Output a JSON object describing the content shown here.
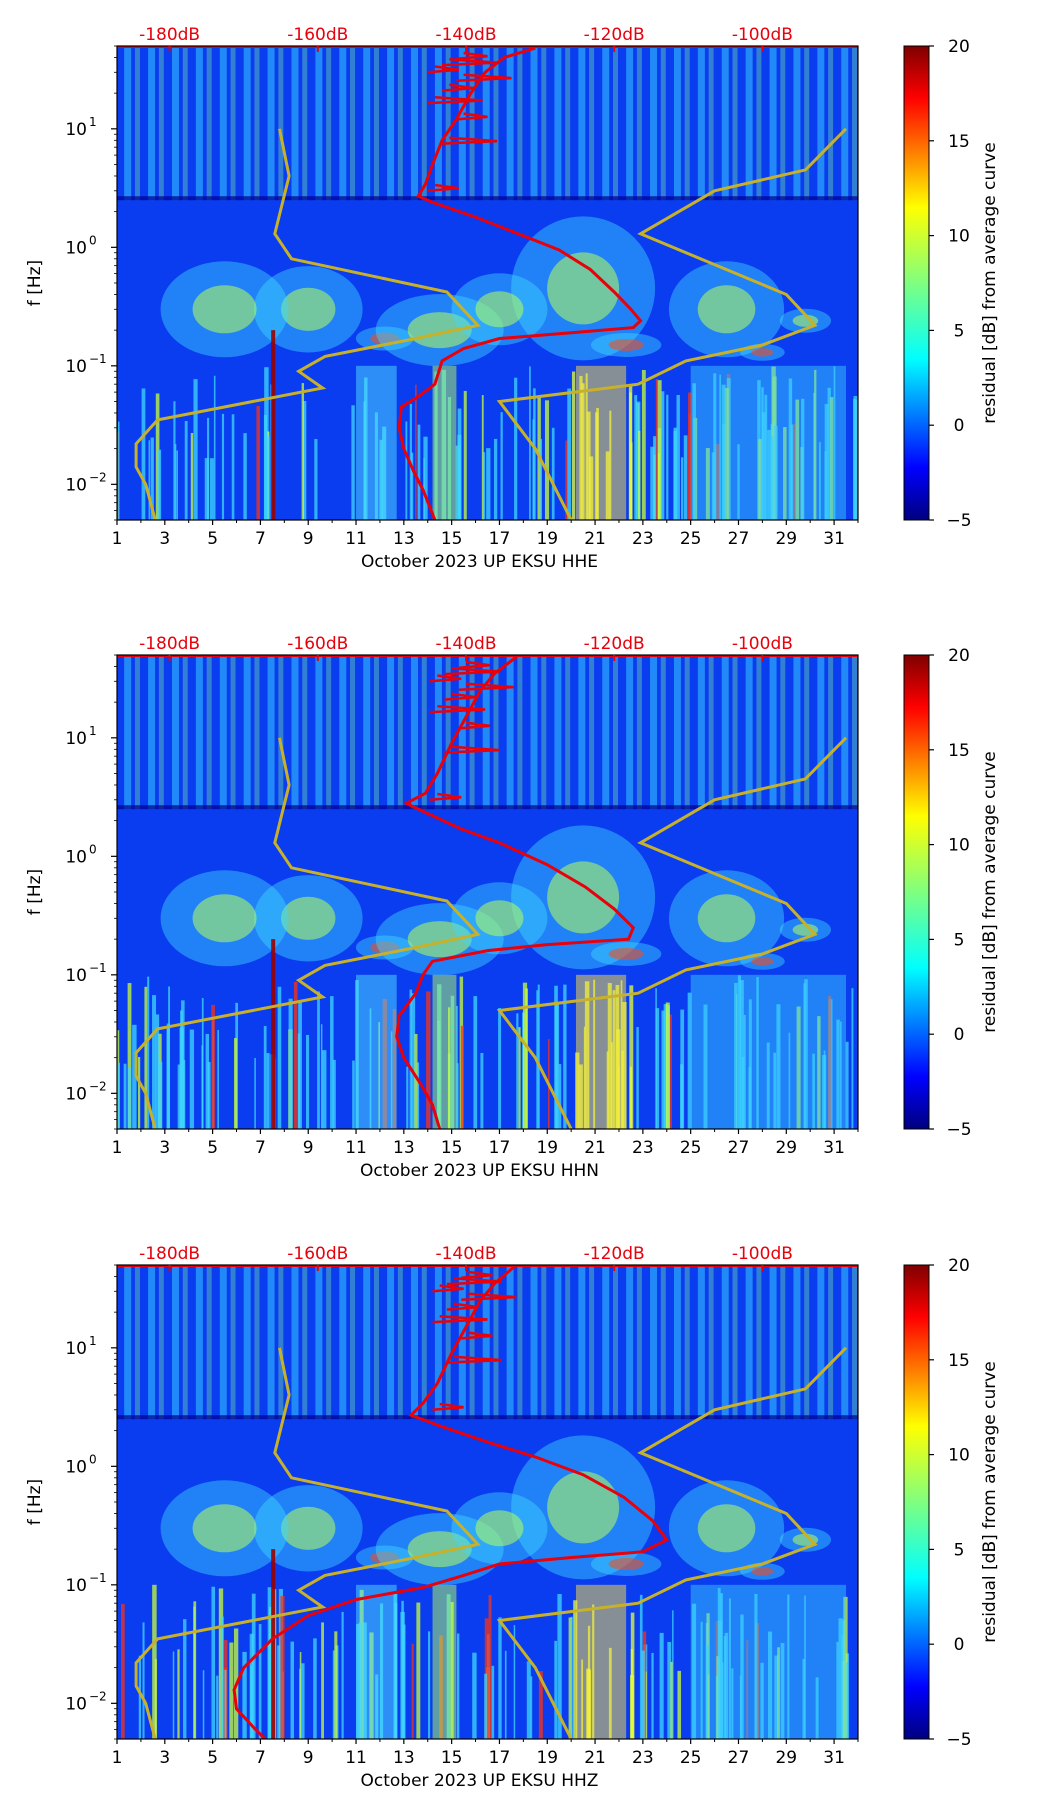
{
  "chart_data": [
    {
      "type": "heatmap",
      "title": "",
      "xlabel": "October 2023 UP EKSU  HHE",
      "ylabel": "f [Hz]",
      "x_ticks": [
        "1",
        "3",
        "5",
        "7",
        "9",
        "11",
        "13",
        "15",
        "17",
        "19",
        "21",
        "23",
        "25",
        "27",
        "29",
        "31"
      ],
      "x_range": [
        1,
        32
      ],
      "y_range_hz": [
        0.005,
        50
      ],
      "y_ticks": [
        {
          "label": "10",
          "exp": "1",
          "value": 10
        },
        {
          "label": "10",
          "exp": "0",
          "value": 1
        },
        {
          "label": "10",
          "exp": "−1",
          "value": 0.1
        },
        {
          "label": "10",
          "exp": "−2",
          "value": 0.01
        }
      ],
      "top_axis_labels": [
        "-180dB",
        "-160dB",
        "-140dB",
        "-120dB",
        "-100dB"
      ],
      "colorbar": {
        "label": "residual [dB] from average curve",
        "ticks": [
          "20",
          "15",
          "10",
          "5",
          "0",
          "−5"
        ],
        "range": [
          -5,
          20
        ]
      },
      "red_curve": {
        "name": "average PSD curve",
        "points": [
          [
            18.5,
            48
          ],
          [
            17.2,
            40
          ],
          [
            16.4,
            30
          ],
          [
            15.8,
            20
          ],
          [
            15.2,
            12
          ],
          [
            14.6,
            8
          ],
          [
            14.2,
            5
          ],
          [
            13.9,
            3.4
          ],
          [
            13.6,
            2.7
          ],
          [
            14.2,
            2.4
          ],
          [
            16.0,
            1.8
          ],
          [
            18.0,
            1.25
          ],
          [
            19.5,
            0.95
          ],
          [
            20.8,
            0.65
          ],
          [
            21.8,
            0.42
          ],
          [
            22.5,
            0.3
          ],
          [
            22.9,
            0.24
          ],
          [
            22.6,
            0.21
          ],
          [
            20.0,
            0.19
          ],
          [
            17.0,
            0.17
          ],
          [
            15.5,
            0.14
          ],
          [
            14.6,
            0.11
          ],
          [
            14.3,
            0.07
          ],
          [
            13.6,
            0.055
          ],
          [
            12.9,
            0.045
          ],
          [
            12.8,
            0.03
          ],
          [
            13.0,
            0.02
          ],
          [
            13.4,
            0.013
          ],
          [
            13.8,
            0.009
          ],
          [
            14.3,
            0.005
          ]
        ]
      },
      "olive_curve": {
        "name": "noise model bounds",
        "points": [
          [
            7.8,
            10
          ],
          [
            8.2,
            4
          ],
          [
            7.6,
            1.3
          ],
          [
            8.3,
            0.8
          ],
          [
            14.8,
            0.42
          ],
          [
            16.1,
            0.22
          ],
          [
            13.5,
            0.17
          ],
          [
            9.7,
            0.12
          ],
          [
            8.6,
            0.09
          ],
          [
            9.6,
            0.065
          ],
          [
            2.7,
            0.035
          ],
          [
            1.8,
            0.022
          ],
          [
            1.8,
            0.014
          ],
          [
            2.2,
            0.01
          ],
          [
            2.6,
            0.005
          ]
        ]
      },
      "olive_curve_2": {
        "name": "noise model bounds (right)",
        "points": [
          [
            31.5,
            10
          ],
          [
            29.8,
            4.5
          ],
          [
            26.0,
            3.0
          ],
          [
            22.9,
            1.3
          ],
          [
            29.0,
            0.4
          ],
          [
            30.2,
            0.22
          ],
          [
            28.0,
            0.15
          ],
          [
            24.8,
            0.11
          ],
          [
            22.8,
            0.07
          ],
          [
            17.0,
            0.05
          ],
          [
            18.5,
            0.02
          ],
          [
            20.0,
            0.005
          ]
        ]
      }
    },
    {
      "type": "heatmap",
      "title": "",
      "xlabel": "October 2023 UP EKSU  HHN",
      "ylabel": "f [Hz]",
      "x_ticks": [
        "1",
        "3",
        "5",
        "7",
        "9",
        "11",
        "13",
        "15",
        "17",
        "19",
        "21",
        "23",
        "25",
        "27",
        "29",
        "31"
      ],
      "x_range": [
        1,
        32
      ],
      "y_range_hz": [
        0.005,
        50
      ],
      "y_ticks": [
        {
          "label": "10",
          "exp": "1",
          "value": 10
        },
        {
          "label": "10",
          "exp": "0",
          "value": 1
        },
        {
          "label": "10",
          "exp": "−1",
          "value": 0.1
        },
        {
          "label": "10",
          "exp": "−2",
          "value": 0.01
        }
      ],
      "top_axis_labels": [
        "-180dB",
        "-160dB",
        "-140dB",
        "-120dB",
        "-100dB"
      ],
      "colorbar": {
        "label": "residual [dB] from average curve",
        "ticks": [
          "20",
          "15",
          "10",
          "5",
          "0",
          "−5"
        ],
        "range": [
          -5,
          20
        ]
      },
      "red_curve": {
        "name": "average PSD curve",
        "points": [
          [
            17.7,
            48
          ],
          [
            16.8,
            35
          ],
          [
            16.2,
            25
          ],
          [
            15.6,
            15
          ],
          [
            15.0,
            9
          ],
          [
            14.4,
            5
          ],
          [
            13.9,
            3.4
          ],
          [
            13.1,
            2.8
          ],
          [
            14.0,
            2.3
          ],
          [
            15.4,
            1.7
          ],
          [
            17.0,
            1.3
          ],
          [
            19.0,
            0.85
          ],
          [
            20.6,
            0.55
          ],
          [
            21.8,
            0.36
          ],
          [
            22.6,
            0.25
          ],
          [
            22.4,
            0.2
          ],
          [
            19.0,
            0.18
          ],
          [
            16.5,
            0.16
          ],
          [
            14.2,
            0.13
          ],
          [
            13.8,
            0.1
          ],
          [
            13.5,
            0.07
          ],
          [
            12.8,
            0.045
          ],
          [
            12.7,
            0.03
          ],
          [
            13.0,
            0.02
          ],
          [
            13.7,
            0.012
          ],
          [
            14.2,
            0.008
          ],
          [
            14.5,
            0.005
          ]
        ]
      },
      "olive_curve": {
        "name": "noise model bounds",
        "points": [
          [
            7.8,
            10
          ],
          [
            8.2,
            4
          ],
          [
            7.6,
            1.3
          ],
          [
            8.3,
            0.8
          ],
          [
            14.8,
            0.42
          ],
          [
            16.1,
            0.22
          ],
          [
            13.5,
            0.17
          ],
          [
            9.7,
            0.12
          ],
          [
            8.6,
            0.09
          ],
          [
            9.6,
            0.065
          ],
          [
            2.7,
            0.035
          ],
          [
            1.8,
            0.022
          ],
          [
            1.8,
            0.014
          ],
          [
            2.2,
            0.01
          ],
          [
            2.6,
            0.005
          ]
        ]
      },
      "olive_curve_2": {
        "name": "noise model bounds (right)",
        "points": [
          [
            31.5,
            10
          ],
          [
            29.8,
            4.5
          ],
          [
            26.0,
            3.0
          ],
          [
            22.9,
            1.3
          ],
          [
            29.0,
            0.4
          ],
          [
            30.2,
            0.22
          ],
          [
            28.0,
            0.15
          ],
          [
            24.8,
            0.11
          ],
          [
            22.8,
            0.07
          ],
          [
            17.0,
            0.05
          ],
          [
            18.5,
            0.02
          ],
          [
            20.0,
            0.005
          ]
        ]
      }
    },
    {
      "type": "heatmap",
      "title": "",
      "xlabel": "October 2023 UP EKSU  HHZ",
      "ylabel": "f [Hz]",
      "x_ticks": [
        "1",
        "3",
        "5",
        "7",
        "9",
        "11",
        "13",
        "15",
        "17",
        "19",
        "21",
        "23",
        "25",
        "27",
        "29",
        "31"
      ],
      "x_range": [
        1,
        32
      ],
      "y_range_hz": [
        0.005,
        50
      ],
      "y_ticks": [
        {
          "label": "10",
          "exp": "1",
          "value": 10
        },
        {
          "label": "10",
          "exp": "0",
          "value": 1
        },
        {
          "label": "10",
          "exp": "−1",
          "value": 0.1
        },
        {
          "label": "10",
          "exp": "−2",
          "value": 0.01
        }
      ],
      "top_axis_labels": [
        "-180dB",
        "-160dB",
        "-140dB",
        "-120dB",
        "-100dB"
      ],
      "colorbar": {
        "label": "residual [dB] from average curve",
        "ticks": [
          "20",
          "15",
          "10",
          "5",
          "0",
          "−5"
        ],
        "range": [
          -5,
          20
        ]
      },
      "red_curve": {
        "name": "average PSD curve",
        "points": [
          [
            17.6,
            48
          ],
          [
            16.8,
            35
          ],
          [
            16.2,
            25
          ],
          [
            15.6,
            15
          ],
          [
            15.0,
            9
          ],
          [
            14.4,
            5
          ],
          [
            13.8,
            3.4
          ],
          [
            13.3,
            2.7
          ],
          [
            14.5,
            2.2
          ],
          [
            16.5,
            1.6
          ],
          [
            18.5,
            1.2
          ],
          [
            20.5,
            0.85
          ],
          [
            22.2,
            0.55
          ],
          [
            23.4,
            0.35
          ],
          [
            24.0,
            0.24
          ],
          [
            23.0,
            0.19
          ],
          [
            20.0,
            0.17
          ],
          [
            17.0,
            0.15
          ],
          [
            15.5,
            0.12
          ],
          [
            13.8,
            0.095
          ],
          [
            11.0,
            0.075
          ],
          [
            9.0,
            0.055
          ],
          [
            7.5,
            0.035
          ],
          [
            6.3,
            0.02
          ],
          [
            5.9,
            0.013
          ],
          [
            6.0,
            0.009
          ],
          [
            6.8,
            0.006
          ],
          [
            7.2,
            0.005
          ]
        ]
      },
      "olive_curve": {
        "name": "noise model bounds",
        "points": [
          [
            7.8,
            10
          ],
          [
            8.2,
            4
          ],
          [
            7.6,
            1.3
          ],
          [
            8.3,
            0.8
          ],
          [
            14.8,
            0.42
          ],
          [
            16.1,
            0.22
          ],
          [
            13.5,
            0.17
          ],
          [
            9.7,
            0.12
          ],
          [
            8.6,
            0.09
          ],
          [
            9.6,
            0.065
          ],
          [
            2.7,
            0.035
          ],
          [
            1.8,
            0.022
          ],
          [
            1.8,
            0.014
          ],
          [
            2.2,
            0.01
          ],
          [
            2.6,
            0.005
          ]
        ]
      },
      "olive_curve_2": {
        "name": "noise model bounds (right)",
        "points": [
          [
            31.5,
            10
          ],
          [
            29.8,
            4.5
          ],
          [
            26.0,
            3.0
          ],
          [
            22.9,
            1.3
          ],
          [
            29.0,
            0.4
          ],
          [
            30.2,
            0.22
          ],
          [
            28.0,
            0.15
          ],
          [
            24.8,
            0.11
          ],
          [
            22.8,
            0.07
          ],
          [
            17.0,
            0.05
          ],
          [
            18.5,
            0.02
          ],
          [
            20.0,
            0.005
          ]
        ]
      }
    }
  ],
  "colors": {
    "red_curve": "#e8000b",
    "olive_curve": "#c8b12a",
    "db_labels": "#e8000b",
    "background_low": "#00007f",
    "background_mid": "#0050ff"
  }
}
